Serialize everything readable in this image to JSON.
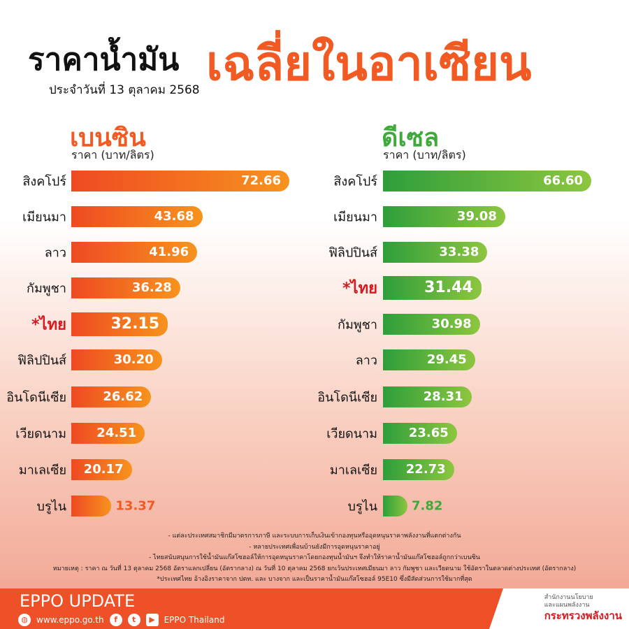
{
  "header": {
    "title_left": "ราคาน้ำมัน",
    "title_right": "เฉลี่ยในอาเซียน",
    "date": "ประจำวันที่   13 ตุลาคม 2568"
  },
  "chart_data": [
    {
      "type": "bar",
      "orientation": "horizontal",
      "title": "เบนซิน",
      "ylabel": "ราคา (บาท/ลิตร)",
      "color": "#f15a22",
      "categories": [
        "สิงคโปร์",
        "เมียนมา",
        "ลาว",
        "กัมพูชา",
        "*ไทย",
        "ฟิลิปปินส์",
        "อินโดนีเซีย",
        "เวียดนาม",
        "มาเลเซีย",
        "บรูไน"
      ],
      "values": [
        72.66,
        43.68,
        41.96,
        36.28,
        32.15,
        30.2,
        26.62,
        24.51,
        20.17,
        13.37
      ],
      "labels": [
        "72.66",
        "43.68",
        "41.96",
        "36.28",
        "32.15",
        "30.20",
        "26.62",
        "24.51",
        "20.17",
        "13.37"
      ]
    },
    {
      "type": "bar",
      "orientation": "horizontal",
      "title": "ดีเซล",
      "ylabel": "ราคา (บาท/ลิตร)",
      "color": "#3daa3a",
      "categories": [
        "สิงคโปร์",
        "เมียนมา",
        "ฟิลิปปินส์",
        "*ไทย",
        "กัมพูชา",
        "ลาว",
        "อินโดนีเซีย",
        "เวียดนาม",
        "มาเลเซีย",
        "บรูไน"
      ],
      "values": [
        66.6,
        39.08,
        33.38,
        31.44,
        30.98,
        29.45,
        28.31,
        23.65,
        22.73,
        7.82
      ],
      "labels": [
        "66.60",
        "39.08",
        "33.38",
        "31.44",
        "30.98",
        "29.45",
        "28.31",
        "23.65",
        "22.73",
        "7.82"
      ]
    }
  ],
  "notes": [
    "- แต่ละประเทศสมาชิกมีมาตรการภาษี และระบบการเก็บเงินเข้ากองทุนหรืออุดหนุนราคาพลังงานที่แตกต่างกัน",
    "- หลายประเทศเพื่อนบ้านยังมีการอุดหนุนราคาอยู่",
    "- ไทยสนับสนุนการใช้น้ำมันแก๊สโซฮอล์ให้การอุดหนุนราคาโดยกองทุนน้ำมันฯ จึงทำให้ราคาน้ำมันแก๊สโซฮอล์ถูกกว่าเบนซิน",
    "หมายเหตุ : ราคา ณ วันที่ 13 ตุลาคม 2568 อัตราแลกเปลี่ยน (อัตรากลาง) ณ วันที่ 10 ตุลาคม 2568 ยกเว้นประเทศเมียนมา ลาว กัมพูชา และเวียดนาม ใช้อัตราในตลาดต่างประเทศ (อัตรากลาง)",
    "*ประเทศไทย อ้างอิงราคาจาก ปตท. และ บางจาก และเป็นราคาน้ำมันแก๊สโซฮอล์ 95E10 ซึ่งมีสัดส่วนการใช้มากที่สุด"
  ],
  "footer": {
    "brand": "EPPO UPDATE",
    "website": "www.eppo.go.th",
    "social": "EPPO Thailand",
    "org_line1": "สำนักงานนโยบาย",
    "org_line2": "และแผนพลังงาน",
    "org_line3": "กระทรวงพลังงาน",
    "icons": [
      "globe-icon",
      "facebook-icon",
      "twitter-icon",
      "youtube-icon"
    ]
  }
}
